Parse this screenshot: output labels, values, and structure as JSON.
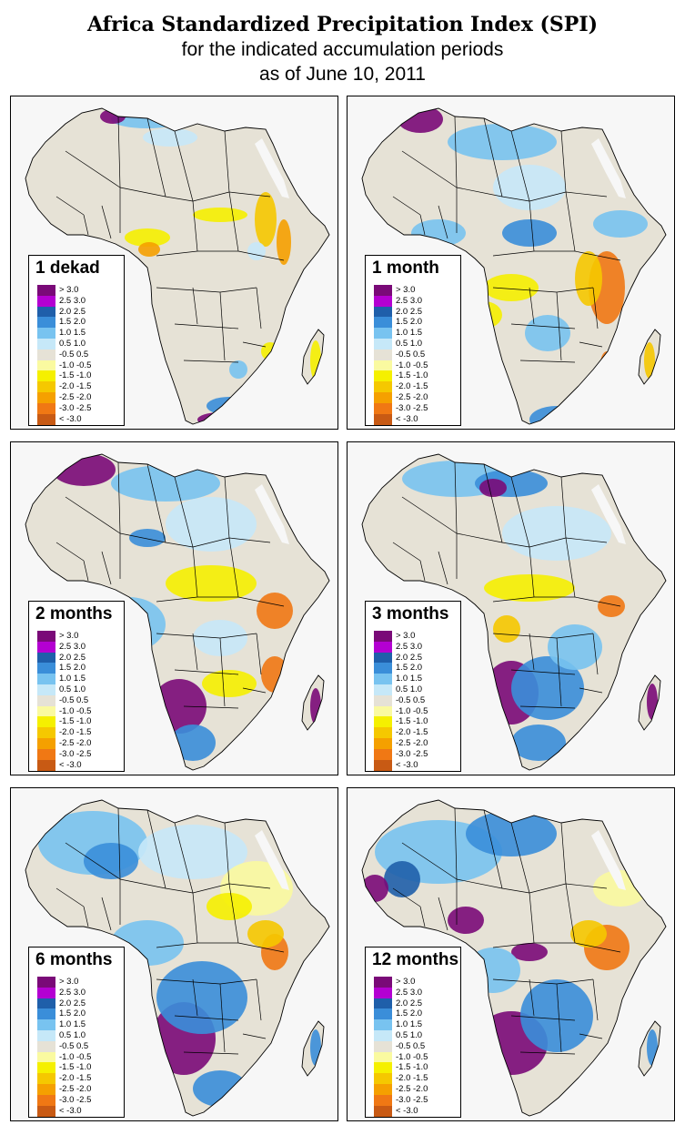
{
  "header": {
    "title": "Africa Standardized Precipitation Index (SPI)",
    "subtitle_line1": "for the indicated accumulation periods",
    "subtitle_line2": "as of June 10, 2011"
  },
  "legend_classes": [
    {
      "label": "> 3.0",
      "color": "#7a0a78"
    },
    {
      "label": "2.5  3.0",
      "color": "#b400d2"
    },
    {
      "label": "2.0  2.5",
      "color": "#1f5faa"
    },
    {
      "label": "1.5  2.0",
      "color": "#3a8ed9"
    },
    {
      "label": "1.0  1.5",
      "color": "#78c3f0"
    },
    {
      "label": "0.5  1.0",
      "color": "#c6e8f8"
    },
    {
      "label": "-0.5  0.5",
      "color": "#e6e2d6"
    },
    {
      "label": "-1.0 -0.5",
      "color": "#fafaa0"
    },
    {
      "label": "-1.5 -1.0",
      "color": "#f5f000"
    },
    {
      "label": "-2.0 -1.5",
      "color": "#f5c800"
    },
    {
      "label": "-2.5 -2.0",
      "color": "#f5a000"
    },
    {
      "label": "-3.0 -2.5",
      "color": "#f07814"
    },
    {
      "label": "< -3.0",
      "color": "#c85a14"
    }
  ],
  "panels": [
    {
      "period": "1 dekad",
      "scheme": "dekad"
    },
    {
      "period": "1 month",
      "scheme": "month"
    },
    {
      "period": "2 months",
      "scheme": "m2"
    },
    {
      "period": "3 months",
      "scheme": "m3"
    },
    {
      "period": "6 months",
      "scheme": "m6"
    },
    {
      "period": "12 months",
      "scheme": "m12"
    }
  ],
  "colors": {
    "land": "#e6e2d6",
    "ocean": "#f7f7f7",
    "border": "#000000"
  }
}
